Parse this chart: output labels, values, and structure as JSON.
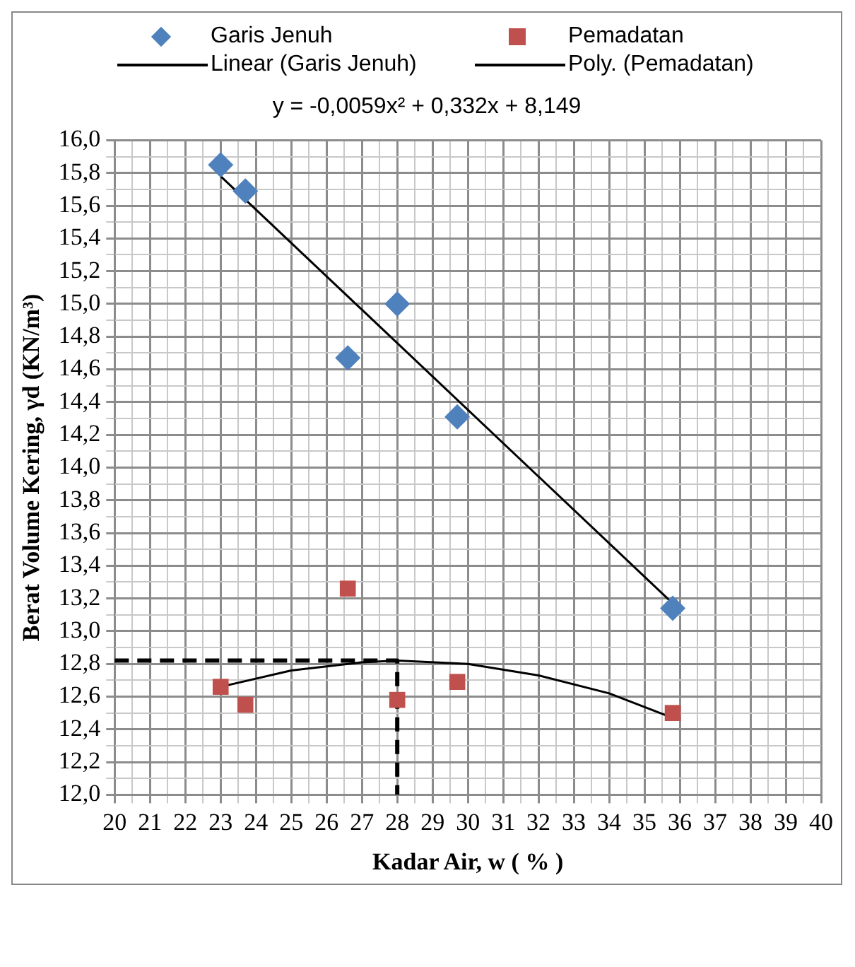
{
  "chart_data": {
    "type": "scatter",
    "xlabel": "Kadar Air, w ( % )",
    "ylabel": "Berat Volume Kering, γd (KN/m³)",
    "annotations": [
      "y = -0,0059x² + 0,332x + 8,149"
    ],
    "xlim": [
      20,
      40
    ],
    "xticks": [
      20,
      {
        "value": 20.5,
        "label": null
      },
      21,
      {
        "value": 21.5,
        "label": null
      },
      22,
      {
        "value": 22.5,
        "label": null
      },
      23,
      {
        "value": 23.5,
        "label": null
      },
      24,
      {
        "value": 24.5,
        "label": null
      },
      25,
      {
        "value": 25.5,
        "label": null
      },
      26,
      {
        "value": 26.5,
        "label": null
      },
      27,
      {
        "value": 27.5,
        "label": null
      },
      28,
      {
        "value": 28.5,
        "label": null
      },
      29,
      {
        "value": 29.5,
        "label": null
      },
      30,
      {
        "value": 30.5,
        "label": null
      },
      31,
      {
        "value": 31.5,
        "label": null
      },
      32,
      {
        "value": 32.5,
        "label": null
      },
      33,
      {
        "value": 33.5,
        "label": null
      },
      34,
      {
        "value": 34.5,
        "label": null
      },
      35,
      {
        "value": 35.5,
        "label": null
      },
      36,
      {
        "value": 36.5,
        "label": null
      },
      37,
      {
        "value": 37.5,
        "label": null
      },
      38,
      {
        "value": 38.5,
        "label": null
      },
      39,
      {
        "value": 39.5,
        "label": null
      },
      40
    ],
    "ylim": [
      12,
      16
    ],
    "yticks": [
      {
        "value": 12,
        "label": "12,0"
      },
      {
        "value": 12.1,
        "label": null
      },
      {
        "value": 12.2,
        "label": "12,2"
      },
      {
        "value": 12.3,
        "label": null
      },
      {
        "value": 12.4,
        "label": "12,4"
      },
      {
        "value": 12.5,
        "label": null
      },
      {
        "value": 12.6,
        "label": "12,6"
      },
      {
        "value": 12.7,
        "label": null
      },
      {
        "value": 12.8,
        "label": "12,8"
      },
      {
        "value": 12.9,
        "label": null
      },
      {
        "value": 13,
        "label": "13,0"
      },
      {
        "value": 13.1,
        "label": null
      },
      {
        "value": 13.2,
        "label": "13,2"
      },
      {
        "value": 13.3,
        "label": null
      },
      {
        "value": 13.4,
        "label": "13,4"
      },
      {
        "value": 13.5,
        "label": null
      },
      {
        "value": 13.6,
        "label": "13,6"
      },
      {
        "value": 13.7,
        "label": null
      },
      {
        "value": 13.8,
        "label": "13,8"
      },
      {
        "value": 13.9,
        "label": null
      },
      {
        "value": 14,
        "label": "14,0"
      },
      {
        "value": 14.1,
        "label": null
      },
      {
        "value": 14.2,
        "label": "14,2"
      },
      {
        "value": 14.3,
        "label": null
      },
      {
        "value": 14.4,
        "label": "14,4"
      },
      {
        "value": 14.5,
        "label": null
      },
      {
        "value": 14.6,
        "label": "14,6"
      },
      {
        "value": 14.7,
        "label": null
      },
      {
        "value": 14.8,
        "label": "14,8"
      },
      {
        "value": 14.9,
        "label": null
      },
      {
        "value": 15,
        "label": "15,0"
      },
      {
        "value": 15.1,
        "label": null
      },
      {
        "value": 15.2,
        "label": "15,2"
      },
      {
        "value": 15.3,
        "label": null
      },
      {
        "value": 15.4,
        "label": "15,4"
      },
      {
        "value": 15.5,
        "label": null
      },
      {
        "value": 15.6,
        "label": "15,6"
      },
      {
        "value": 15.7,
        "label": null
      },
      {
        "value": 15.8,
        "label": "15,8"
      },
      {
        "value": 15.9,
        "label": null
      },
      {
        "value": 16,
        "label": "16,0"
      }
    ],
    "grid": true,
    "legend": "top",
    "series": [
      {
        "name": "Garis Jenuh",
        "type": "scatter",
        "marker": "diamond",
        "color": "#4f81bd",
        "x": [
          23,
          23.7,
          26.6,
          28,
          29.7,
          35.8
        ],
        "values": [
          15.85,
          15.69,
          14.67,
          15.0,
          14.31,
          13.14
        ]
      },
      {
        "name": "Pemadatan",
        "type": "scatter",
        "marker": "square",
        "color": "#c0504d",
        "x": [
          23,
          23.7,
          26.6,
          28,
          29.7,
          35.8
        ],
        "values": [
          12.66,
          12.55,
          13.26,
          12.58,
          12.69,
          12.5
        ]
      },
      {
        "name": "Linear (Garis Jenuh)",
        "type": "line",
        "marker": "none",
        "line_style": "solid",
        "color": "#000000",
        "x": [
          23,
          35.8
        ],
        "values": [
          15.78,
          13.17
        ]
      },
      {
        "name": "Poly. (Pemadatan)",
        "type": "line",
        "marker": "none",
        "line_style": "solid",
        "color": "#000000",
        "x": [
          23,
          25,
          27,
          28,
          30,
          32,
          34,
          35.8
        ],
        "values": [
          12.66,
          12.76,
          12.81,
          12.82,
          12.8,
          12.73,
          12.62,
          12.47
        ]
      },
      {
        "type": "line",
        "marker": "none",
        "line_style": "dashed",
        "color": "#000000",
        "x": [
          20,
          28,
          28
        ],
        "values": [
          12.82,
          12.82,
          12.0
        ]
      }
    ]
  }
}
